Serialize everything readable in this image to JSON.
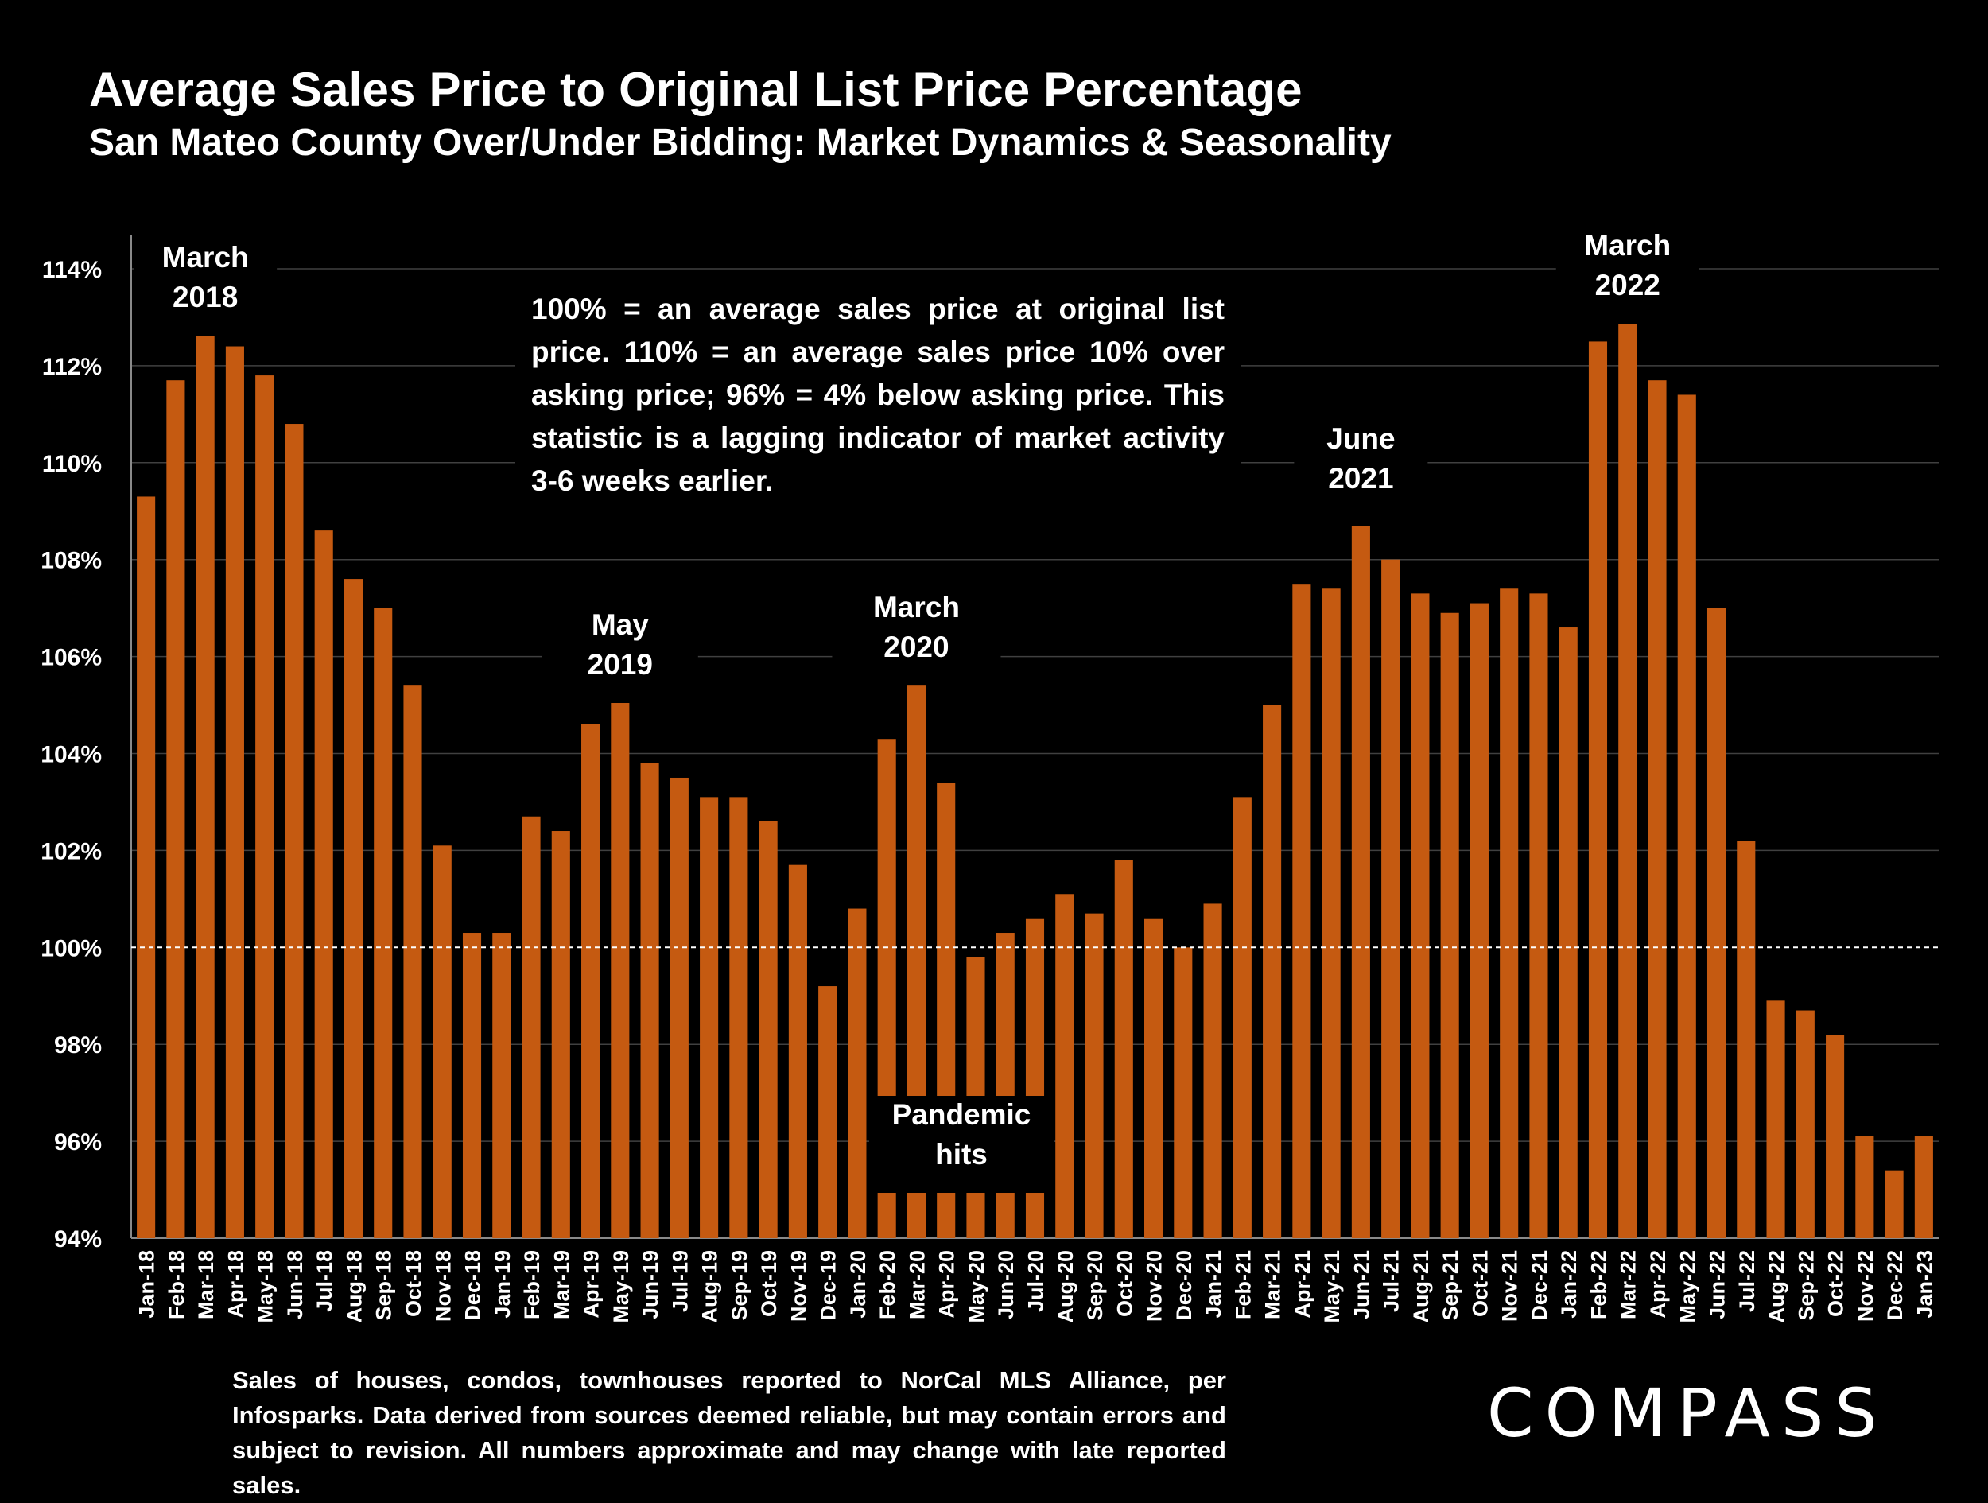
{
  "header": {
    "title": "Average Sales Price to Original List Price Percentage",
    "subtitle": "San Mateo County Over/Under Bidding: Market Dynamics & Seasonality"
  },
  "footnote": "Sales of houses, condos, townhouses reported to NorCal MLS Alliance, per Infosparks. Data derived from sources deemed reliable, but may contain errors and subject to revision. All numbers approximate and may change with late reported sales.",
  "logo": "COMPASS",
  "colors": {
    "bar": "#C55A11",
    "background": "#000000",
    "grid": "#404040",
    "text": "#FFFFFF",
    "reference_line": "#FFFFFF"
  },
  "chart_data": {
    "type": "bar",
    "title": "Average Sales Price to Original List Price Percentage",
    "subtitle": "San Mateo County Over/Under Bidding: Market Dynamics & Seasonality",
    "categories": [
      "Jan-18",
      "Feb-18",
      "Mar-18",
      "Apr-18",
      "May-18",
      "Jun-18",
      "Jul-18",
      "Aug-18",
      "Sep-18",
      "Oct-18",
      "Nov-18",
      "Dec-18",
      "Jan-19",
      "Feb-19",
      "Mar-19",
      "Apr-19",
      "May-19",
      "Jun-19",
      "Jul-19",
      "Aug-19",
      "Sep-19",
      "Oct-19",
      "Nov-19",
      "Dec-19",
      "Jan-20",
      "Feb-20",
      "Mar-20",
      "Apr-20",
      "May-20",
      "Jun-20",
      "Jul-20",
      "Aug-20",
      "Sep-20",
      "Oct-20",
      "Nov-20",
      "Dec-20",
      "Jan-21",
      "Feb-21",
      "Mar-21",
      "Apr-21",
      "May-21",
      "Jun-21",
      "Jul-21",
      "Aug-21",
      "Sep-21",
      "Oct-21",
      "Nov-21",
      "Dec-21",
      "Jan-22",
      "Feb-22",
      "Mar-22",
      "Apr-22",
      "May-22",
      "Jun-22",
      "Jul-22",
      "Aug-22",
      "Sep-22",
      "Oct-22",
      "Nov-22",
      "Dec-22",
      "Jan-23"
    ],
    "values": [
      109.3,
      111.7,
      112.8,
      112.4,
      111.8,
      110.8,
      108.6,
      107.6,
      107.0,
      105.4,
      102.1,
      100.3,
      100.3,
      102.7,
      102.4,
      104.6,
      105.1,
      103.8,
      103.5,
      103.1,
      103.1,
      102.6,
      101.7,
      99.2,
      100.8,
      104.3,
      105.4,
      103.4,
      99.8,
      100.3,
      100.6,
      101.1,
      100.7,
      101.8,
      100.6,
      100.0,
      100.9,
      103.1,
      105.0,
      107.5,
      107.4,
      108.7,
      108.0,
      107.3,
      106.9,
      107.1,
      107.4,
      107.3,
      106.6,
      112.5,
      112.9,
      111.7,
      111.4,
      107.0,
      102.2,
      98.9,
      98.7,
      98.2,
      96.1,
      95.4,
      96.1
    ],
    "ylim": [
      94,
      114
    ],
    "yticks": [
      "94%",
      "96%",
      "98%",
      "100%",
      "102%",
      "104%",
      "106%",
      "108%",
      "110%",
      "112%",
      "114%"
    ],
    "ytick_values": [
      94,
      96,
      98,
      100,
      102,
      104,
      106,
      108,
      110,
      112,
      114
    ],
    "reference_line": 100,
    "grid": true,
    "annotations": [
      {
        "text": [
          "March",
          "2018"
        ],
        "category": "Mar-18"
      },
      {
        "text": [
          "May",
          "2019"
        ],
        "category": "May-19"
      },
      {
        "text": [
          "March",
          "2020"
        ],
        "category": "Mar-20"
      },
      {
        "text": [
          "June",
          "2021"
        ],
        "category": "Jun-21"
      },
      {
        "text": [
          "March",
          "2022"
        ],
        "category": "Mar-22"
      },
      {
        "text": [
          "Pandemic",
          "hits"
        ],
        "category": "Apr-20"
      }
    ],
    "note": "100% = an average sales price at original list price. 110% = an average sales price 10% over asking price; 96% = 4% below asking price. This statistic is a lagging indicator of market activity 3-6 weeks earlier."
  }
}
